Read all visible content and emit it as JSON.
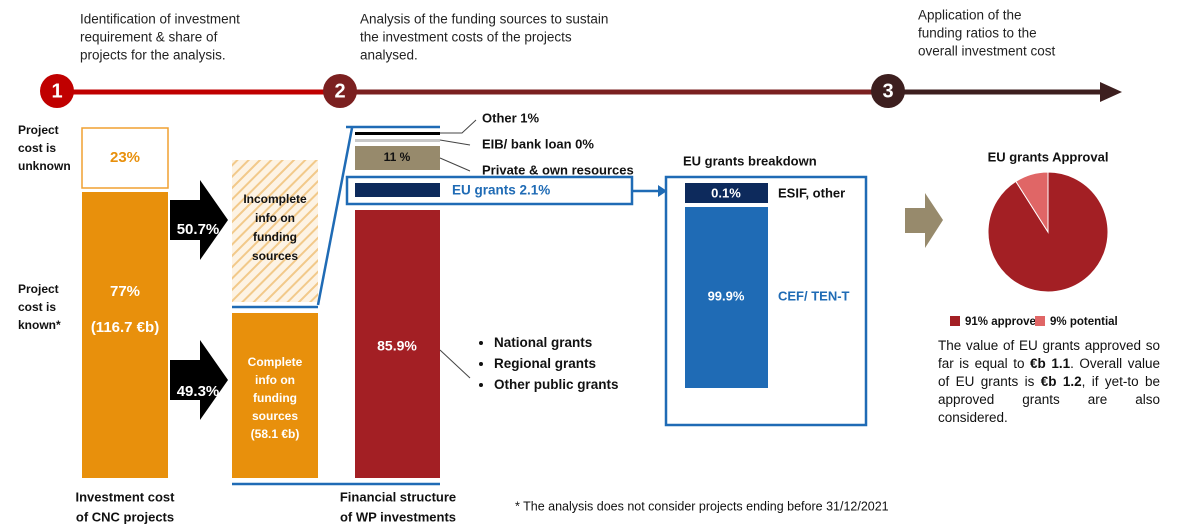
{
  "steps": [
    {
      "number": "1",
      "text": [
        "Identification of investment",
        "requirement & share of",
        "projects for the analysis."
      ]
    },
    {
      "number": "2",
      "text": [
        "Analysis of the funding sources to sustain",
        "the investment costs of the projects",
        "analysed."
      ]
    },
    {
      "number": "3",
      "text": [
        "Application of the",
        "funding ratios to the",
        "overall investment cost"
      ]
    }
  ],
  "left": {
    "unknown_label": [
      "Project",
      "cost is",
      "unknown"
    ],
    "unknown_share": "23%",
    "known_label": [
      "Project",
      "cost is",
      "known*"
    ],
    "known_share": "77%",
    "known_value": "(116.7 €b)",
    "arrow_incomplete": "50.7%",
    "arrow_complete": "49.3%",
    "incomplete_box": [
      "Incomplete",
      "info on",
      "funding",
      "sources"
    ],
    "complete_box": [
      "Complete",
      "info on",
      "funding",
      "sources",
      "(58.1 €b)"
    ],
    "caption": [
      "Investment cost",
      "of CNC projects"
    ]
  },
  "structure": {
    "labels": [
      "Other 1%",
      "EIB/ bank loan 0%",
      "Private & own resources"
    ],
    "eu_grants": "EU grants 2.1%",
    "private_value": "11 %",
    "public_value": "85.9%",
    "bullets": [
      "National grants",
      "Regional grants",
      "Other public grants"
    ],
    "caption": [
      "Financial structure",
      "of WP investments"
    ]
  },
  "breakdown": {
    "title": "EU grants breakdown",
    "top_value": "0.1%",
    "top_label": "ESIF, other",
    "main_value": "99.9%",
    "main_label": "CEF/ TEN-T"
  },
  "approval": {
    "title": "EU grants Approval",
    "slices": [
      {
        "label": "91% approved",
        "value": 91,
        "color": "#a31f24"
      },
      {
        "label": "9% potential",
        "value": 9,
        "color": "#e06666"
      }
    ],
    "paragraph": [
      "The value of EU grants approved so far is equal to ",
      "€b 1.1",
      ". Overall value of EU grants is ",
      "€b 1.2",
      ", if yet-to be approved grants are also considered."
    ]
  },
  "footnote": "* The analysis does not consider projects ending before 31/12/2021"
}
